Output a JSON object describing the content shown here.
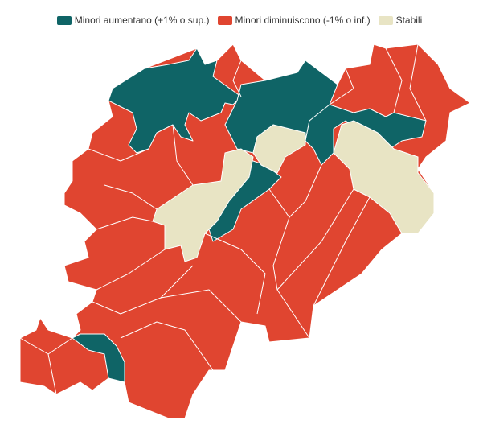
{
  "legend": [
    {
      "label": "Minori aumentano (+1% o sup.)",
      "color": "#0f6466"
    },
    {
      "label": "Minori diminuiscono (-1% o inf.)",
      "color": "#e04530"
    },
    {
      "label": "Stabili",
      "color": "#e8e4c4"
    }
  ]
}
